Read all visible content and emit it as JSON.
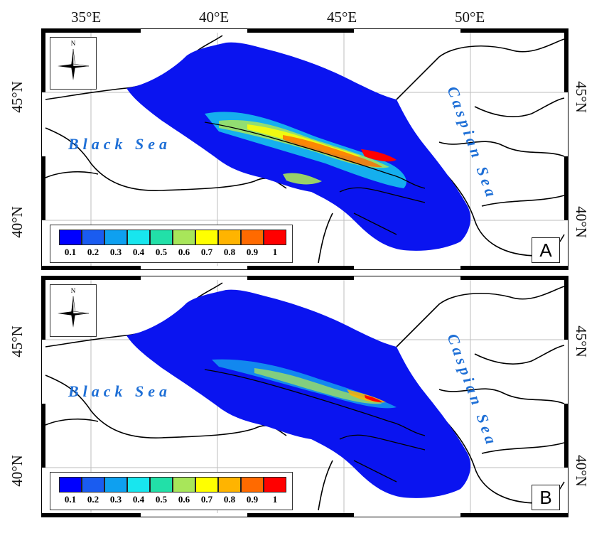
{
  "top_axis": {
    "longitudes": [
      "35°E",
      "40°E",
      "45°E",
      "50°E"
    ]
  },
  "side_axis": {
    "latitudes": [
      "45°N",
      "40°N"
    ]
  },
  "panels": [
    {
      "letter": "A",
      "compass_label": "N",
      "seas": {
        "black": "Black Sea",
        "caspian": "Caspian Sea"
      },
      "legend_ticks": [
        "0.1",
        "0.2",
        "0.3",
        "0.4",
        "0.5",
        "0.6",
        "0.7",
        "0.8",
        "0.9",
        "1"
      ]
    },
    {
      "letter": "B",
      "compass_label": "N",
      "seas": {
        "black": "Black Sea",
        "caspian": "Caspian Sea"
      },
      "legend_ticks": [
        "0.1",
        "0.2",
        "0.3",
        "0.4",
        "0.5",
        "0.6",
        "0.7",
        "0.8",
        "0.9",
        "1"
      ]
    }
  ],
  "legend_colors": [
    "#0000ff",
    "#1a5cf0",
    "#0ea0f0",
    "#18e6ee",
    "#22e0a8",
    "#a8e65a",
    "#ffff00",
    "#ffb400",
    "#ff6a00",
    "#ff0000"
  ],
  "colors": {
    "region": "#0a14f0",
    "land_line": "#000000",
    "sea_text": "#1e6fd6"
  }
}
